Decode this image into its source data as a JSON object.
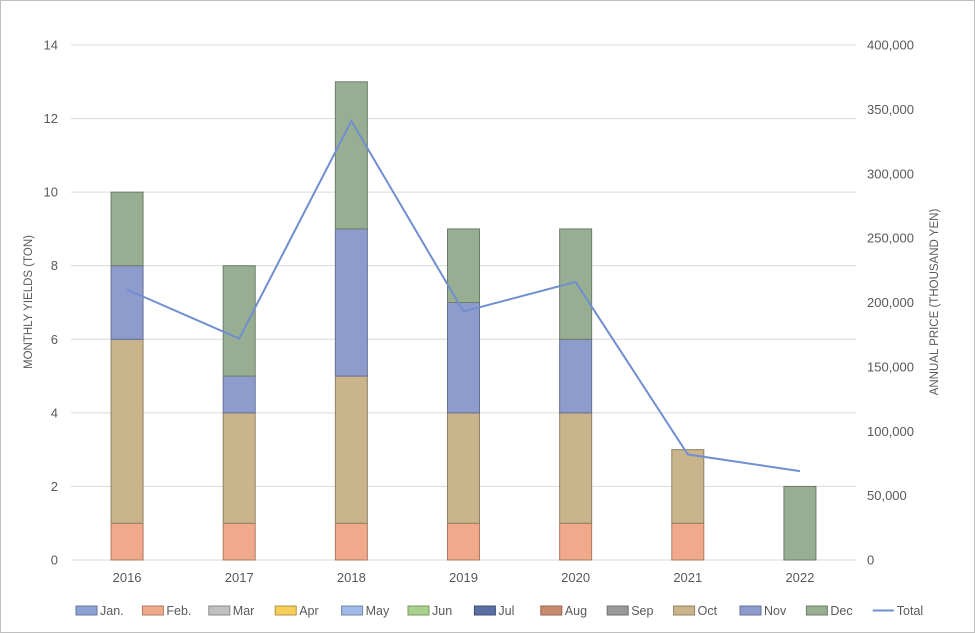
{
  "chart_data": {
    "type": "bar",
    "stacked": true,
    "categories": [
      "2016",
      "2017",
      "2018",
      "2019",
      "2020",
      "2021",
      "2022"
    ],
    "ylabel": "MONTHLY YIELDS (TON)",
    "y2label": "ANNUAL PRICE (THOUSAND YEN)",
    "ylim": [
      0,
      14
    ],
    "y_ticks": [
      "0",
      "2",
      "4",
      "6",
      "8",
      "10",
      "12",
      "14"
    ],
    "y2lim": [
      0,
      400000
    ],
    "y2_ticks": [
      "0",
      "50,000",
      "100,000",
      "150,000",
      "200,000",
      "250,000",
      "300,000",
      "350,000",
      "400,000"
    ],
    "grid": true,
    "legend_position": "bottom",
    "series": [
      {
        "name": "Jan.",
        "color": "#8ea1d3",
        "values": [
          0,
          0,
          0,
          0,
          0,
          0,
          0
        ]
      },
      {
        "name": "Feb.",
        "color": "#f0a98a",
        "values": [
          1,
          1,
          1,
          1,
          1,
          1,
          0
        ]
      },
      {
        "name": "Mar",
        "color": "#c0c0c0",
        "values": [
          0,
          0,
          0,
          0,
          0,
          0,
          0
        ]
      },
      {
        "name": "Apr",
        "color": "#f5cf5a",
        "values": [
          0,
          0,
          0,
          0,
          0,
          0,
          0
        ]
      },
      {
        "name": "May",
        "color": "#9fbbe6",
        "values": [
          0,
          0,
          0,
          0,
          0,
          0,
          0
        ]
      },
      {
        "name": "Jun",
        "color": "#a9d18e",
        "values": [
          0,
          0,
          0,
          0,
          0,
          0,
          0
        ]
      },
      {
        "name": "Jul",
        "color": "#5a6fa3",
        "values": [
          0,
          0,
          0,
          0,
          0,
          0,
          0
        ]
      },
      {
        "name": "Aug",
        "color": "#c98b70",
        "values": [
          0,
          0,
          0,
          0,
          0,
          0,
          0
        ]
      },
      {
        "name": "Sep",
        "color": "#9a9a9a",
        "values": [
          0,
          0,
          0,
          0,
          0,
          0,
          0
        ]
      },
      {
        "name": "Oct",
        "color": "#c9b48c",
        "values": [
          5,
          3,
          4,
          3,
          3,
          2,
          0
        ]
      },
      {
        "name": "Nov",
        "color": "#8d9ccc",
        "values": [
          2,
          1,
          4,
          3,
          2,
          0,
          0
        ]
      },
      {
        "name": "Dec",
        "color": "#98ae93",
        "values": [
          2,
          3,
          4,
          2,
          3,
          0,
          2
        ]
      }
    ],
    "line_series": {
      "name": "Total",
      "color": "#6f8fcf",
      "axis": "y2",
      "values": [
        210000,
        172000,
        341000,
        193000,
        216000,
        82000,
        69000
      ]
    }
  }
}
